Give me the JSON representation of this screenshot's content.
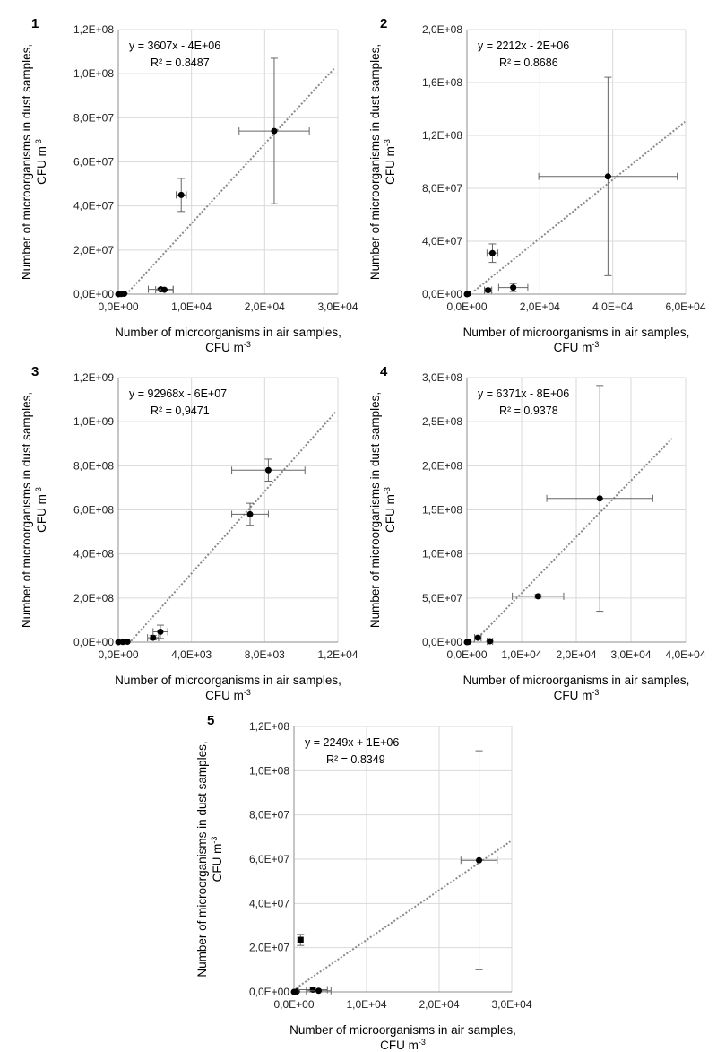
{
  "axis_text": {
    "x_label_line1": "Number of microorganisms in air samples,",
    "x_label_line2": "CFU m",
    "y_label_line1": "Number of microorganisms in dust samples,",
    "y_label_line2": "CFU m",
    "unit_exponent": "-3"
  },
  "chart_data": [
    {
      "panel_label": "1",
      "type": "scatter",
      "equation": "y = 3607x - 4E+06",
      "r2": "R² = 0.8487",
      "xlim": [
        0,
        30000
      ],
      "ylim": [
        0,
        120000000
      ],
      "x_ticks": [
        {
          "v": 0,
          "label": "0,0E+00"
        },
        {
          "v": 10000,
          "label": "1,0E+04"
        },
        {
          "v": 20000,
          "label": "2,0E+04"
        },
        {
          "v": 30000,
          "label": "3,0E+04"
        }
      ],
      "y_ticks": [
        {
          "v": 0,
          "label": "0,0E+00"
        },
        {
          "v": 20000000,
          "label": "2,0E+07"
        },
        {
          "v": 40000000,
          "label": "4,0E+07"
        },
        {
          "v": 60000000,
          "label": "6,0E+07"
        },
        {
          "v": 80000000,
          "label": "8,0E+07"
        },
        {
          "v": 100000000,
          "label": "1,0E+08"
        },
        {
          "v": 120000000,
          "label": "1,2E+08"
        }
      ],
      "trend": {
        "slope": 3607,
        "intercept": -4000000,
        "x_start": 1100,
        "x_end": 29500
      },
      "points": [
        {
          "x": 0,
          "y": 0
        },
        {
          "x": 400,
          "y": 100000
        },
        {
          "x": 800,
          "y": 200000
        },
        {
          "x": 5800,
          "y": 2200000,
          "xerr": 1700,
          "yerr": 500000
        },
        {
          "x": 6300,
          "y": 2000000,
          "xerr": 1200,
          "yerr": 300000
        },
        {
          "x": 8600,
          "y": 45000000,
          "xerr": 700,
          "yerr": 7500000
        },
        {
          "x": 21300,
          "y": 74000000,
          "xerr": 4800,
          "yerr": 33000000
        }
      ]
    },
    {
      "panel_label": "2",
      "type": "scatter",
      "equation": "y = 2212x - 2E+06",
      "r2": "R² = 0.8686",
      "xlim": [
        0,
        60000
      ],
      "ylim": [
        0,
        200000000
      ],
      "x_ticks": [
        {
          "v": 0,
          "label": "0,0E+00"
        },
        {
          "v": 20000,
          "label": "2,0E+04"
        },
        {
          "v": 40000,
          "label": "4,0E+04"
        },
        {
          "v": 60000,
          "label": "6,0E+04"
        }
      ],
      "y_ticks": [
        {
          "v": 0,
          "label": "0,0E+00"
        },
        {
          "v": 40000000,
          "label": "4,0E+07"
        },
        {
          "v": 80000000,
          "label": "8,0E+07"
        },
        {
          "v": 120000000,
          "label": "1,2E+08"
        },
        {
          "v": 160000000,
          "label": "1,6E+08"
        },
        {
          "v": 200000000,
          "label": "2,0E+08"
        }
      ],
      "trend": {
        "slope": 2212,
        "intercept": -2000000,
        "x_start": 2000,
        "x_end": 59800
      },
      "points": [
        {
          "x": 0,
          "y": 0
        },
        {
          "x": 300,
          "y": 300000
        },
        {
          "x": 5800,
          "y": 3000000,
          "xerr": 1000,
          "yerr": 1500000
        },
        {
          "x": 7000,
          "y": 31000000,
          "xerr": 1500,
          "yerr": 7000000
        },
        {
          "x": 12700,
          "y": 5000000,
          "xerr": 4000,
          "yerr": 3000000
        },
        {
          "x": 38700,
          "y": 89000000,
          "xerr": 19000,
          "yerr": 75000000
        }
      ]
    },
    {
      "panel_label": "3",
      "type": "scatter",
      "equation": "y = 92968x - 6E+07",
      "r2": "R² = 0,9471",
      "xlim": [
        0,
        12000
      ],
      "ylim": [
        0,
        1200000000
      ],
      "x_ticks": [
        {
          "v": 0,
          "label": "0,0E+00"
        },
        {
          "v": 4000,
          "label": "4,0E+03"
        },
        {
          "v": 8000,
          "label": "8,0E+03"
        },
        {
          "v": 12000,
          "label": "1,2E+04"
        }
      ],
      "y_ticks": [
        {
          "v": 0,
          "label": "0,0E+00"
        },
        {
          "v": 200000000,
          "label": "2,0E+08"
        },
        {
          "v": 400000000,
          "label": "4,0E+08"
        },
        {
          "v": 600000000,
          "label": "6,0E+08"
        },
        {
          "v": 800000000,
          "label": "8,0E+08"
        },
        {
          "v": 1000000000,
          "label": "1,0E+09"
        },
        {
          "v": 1200000000,
          "label": "1,2E+09"
        }
      ],
      "trend": {
        "slope": 92968,
        "intercept": -60000000,
        "x_start": 700,
        "x_end": 11900
      },
      "points": [
        {
          "x": 0,
          "y": 0
        },
        {
          "x": 250,
          "y": 1000000
        },
        {
          "x": 500,
          "y": 2000000
        },
        {
          "x": 1900,
          "y": 20000000,
          "xerr": 300,
          "yerr": 10000000
        },
        {
          "x": 2300,
          "y": 47000000,
          "xerr": 400,
          "yerr": 30000000
        },
        {
          "x": 7200,
          "y": 580000000,
          "xerr": 1000,
          "yerr": 50000000
        },
        {
          "x": 8200,
          "y": 780000000,
          "xerr": 2000,
          "yerr": 50000000
        }
      ]
    },
    {
      "panel_label": "4",
      "type": "scatter",
      "equation": "y = 6371x - 8E+06",
      "r2": "R² = 0.9378",
      "xlim": [
        0,
        40000
      ],
      "ylim": [
        0,
        300000000
      ],
      "x_ticks": [
        {
          "v": 0,
          "label": "0,0E+00"
        },
        {
          "v": 10000,
          "label": "1,0E+04"
        },
        {
          "v": 20000,
          "label": "2,0E+04"
        },
        {
          "v": 30000,
          "label": "3,0E+04"
        },
        {
          "v": 40000,
          "label": "4,0E+04"
        }
      ],
      "y_ticks": [
        {
          "v": 0,
          "label": "0,0E+00"
        },
        {
          "v": 50000000,
          "label": "5,0E+07"
        },
        {
          "v": 100000000,
          "label": "1,0E+08"
        },
        {
          "v": 150000000,
          "label": "1,5E+08"
        },
        {
          "v": 200000000,
          "label": "2,0E+08"
        },
        {
          "v": 250000000,
          "label": "2,5E+08"
        },
        {
          "v": 300000000,
          "label": "3,0E+08"
        }
      ],
      "trend": {
        "slope": 6371,
        "intercept": -8000000,
        "x_start": 1200,
        "x_end": 37500
      },
      "points": [
        {
          "x": 0,
          "y": 0
        },
        {
          "x": 300,
          "y": 300000
        },
        {
          "x": 2000,
          "y": 5000000,
          "xerr": 600,
          "yerr": 2000000
        },
        {
          "x": 4200,
          "y": 1000000,
          "xerr": 500,
          "yerr": 500000
        },
        {
          "x": 13000,
          "y": 52000000,
          "xerr": 4700,
          "yerr": 2000000
        },
        {
          "x": 24300,
          "y": 163000000,
          "xerr": 9700,
          "yerr": 128000000
        }
      ]
    },
    {
      "panel_label": "5",
      "type": "scatter",
      "equation": "y = 2249x + 1E+06",
      "r2": "R² = 0.8349",
      "xlim": [
        0,
        30000
      ],
      "ylim": [
        0,
        120000000
      ],
      "x_ticks": [
        {
          "v": 0,
          "label": "0,0E+00"
        },
        {
          "v": 10000,
          "label": "1,0E+04"
        },
        {
          "v": 20000,
          "label": "2,0E+04"
        },
        {
          "v": 30000,
          "label": "3,0E+04"
        }
      ],
      "y_ticks": [
        {
          "v": 0,
          "label": "0,0E+00"
        },
        {
          "v": 20000000,
          "label": "2,0E+07"
        },
        {
          "v": 40000000,
          "label": "4,0E+07"
        },
        {
          "v": 60000000,
          "label": "6,0E+07"
        },
        {
          "v": 80000000,
          "label": "8,0E+07"
        },
        {
          "v": 100000000,
          "label": "1,0E+08"
        },
        {
          "v": 120000000,
          "label": "1,2E+08"
        }
      ],
      "trend": {
        "slope": 2249,
        "intercept": 1000000,
        "x_start": 300,
        "x_end": 29800
      },
      "points": [
        {
          "x": 0,
          "y": 0
        },
        {
          "x": 400,
          "y": 200000
        },
        {
          "x": 900,
          "y": 23500000,
          "yerr": 2500000,
          "marker": "square"
        },
        {
          "x": 2600,
          "y": 1000000,
          "xerr": 2000,
          "yerr": 1000000
        },
        {
          "x": 3400,
          "y": 500000,
          "xerr": 1700,
          "yerr": 500000
        },
        {
          "x": 25500,
          "y": 59500000,
          "xerr": 2500,
          "yerr": 49500000
        }
      ]
    }
  ]
}
